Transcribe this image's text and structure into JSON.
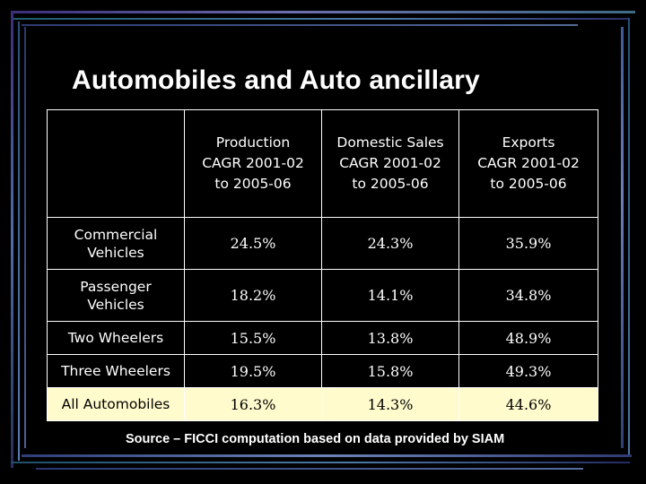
{
  "title": "Automobiles and Auto ancillary",
  "table": {
    "headers": [
      "",
      "Production CAGR 2001-02 to 2005-06",
      "Domestic Sales CAGR 2001-02 to 2005-06",
      "Exports CAGR 2001-02 to 2005-06"
    ],
    "header_lines": [
      [
        ""
      ],
      [
        "Production",
        "CAGR 2001-02",
        "to 2005-06"
      ],
      [
        "Domestic Sales",
        "CAGR 2001-02",
        "to 2005-06"
      ],
      [
        "Exports",
        "CAGR 2001-02",
        "to 2005-06"
      ]
    ],
    "rows": [
      {
        "label_lines": [
          "Commercial",
          "Vehicles"
        ],
        "production": "24.5%",
        "domestic_sales": "24.3%",
        "exports": "35.9%"
      },
      {
        "label_lines": [
          "Passenger",
          "Vehicles"
        ],
        "production": "18.2%",
        "domestic_sales": "14.1%",
        "exports": "34.8%"
      },
      {
        "label_lines": [
          "Two Wheelers"
        ],
        "production": "15.5%",
        "domestic_sales": "13.8%",
        "exports": "48.9%"
      },
      {
        "label_lines": [
          "Three Wheelers"
        ],
        "production": "19.5%",
        "domestic_sales": "15.8%",
        "exports": "49.3%"
      },
      {
        "label_lines": [
          "All Automobiles"
        ],
        "production": "16.3%",
        "domestic_sales": "14.3%",
        "exports": "44.6%"
      }
    ],
    "highlight_row_color": "#fffbcc"
  },
  "source_note": "Source – FICCI computation based on data provided by SIAM"
}
